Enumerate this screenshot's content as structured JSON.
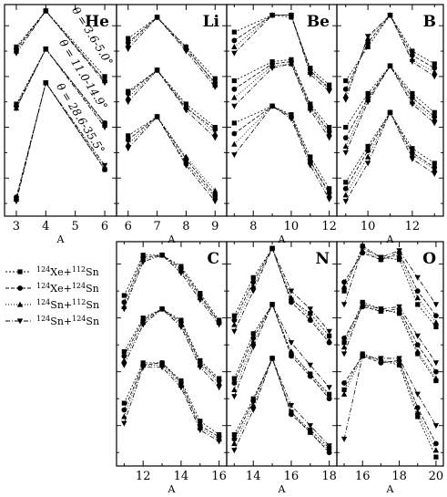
{
  "figure": {
    "xlabel": "A",
    "theta_labels": [
      "θ = 3.6-5.0°",
      "θ = 11.0-14.9°",
      "θ = 28.6-35.5°"
    ]
  },
  "legend": [
    {
      "label": "124Xe+112Sn",
      "marker": "square",
      "dash": "2,2"
    },
    {
      "label": "124Xe+124Sn",
      "marker": "circle",
      "dash": "4,2"
    },
    {
      "label": "124Sn+112Sn",
      "marker": "triangle-up",
      "dash": "1,2"
    },
    {
      "label": "124Sn+124Sn",
      "marker": "triangle-down",
      "dash": "5,2,1,2"
    }
  ],
  "chart_data": [
    {
      "type": "line",
      "element": "He",
      "x": [
        3,
        4,
        6
      ],
      "xticks": [
        3,
        4,
        5,
        6
      ],
      "xlim": [
        2.6,
        6.4
      ],
      "ylim": [
        0,
        1
      ],
      "series": [
        {
          "angle": "3.6-5.0",
          "values": {
            "square": [
              0.2,
              0.03,
              0.34
            ],
            "circle": [
              0.21,
              0.03,
              0.36
            ],
            "triangle-up": [
              0.22,
              0.03,
              0.36
            ],
            "triangle-down": [
              0.23,
              0.03,
              0.37
            ]
          }
        },
        {
          "angle": "11.0-14.9",
          "values": {
            "square": [
              0.47,
              0.21,
              0.56
            ],
            "circle": [
              0.48,
              0.21,
              0.56
            ],
            "triangle-up": [
              0.49,
              0.21,
              0.57
            ],
            "triangle-down": [
              0.49,
              0.21,
              0.58
            ]
          }
        },
        {
          "angle": "28.6-35.5",
          "values": {
            "square": [
              0.92,
              0.37,
              0.78
            ],
            "circle": [
              0.91,
              0.37,
              0.78
            ],
            "triangle-up": [
              0.92,
              0.37,
              0.77
            ],
            "triangle-down": [
              0.93,
              0.37,
              0.76
            ]
          }
        }
      ]
    },
    {
      "type": "line",
      "element": "Li",
      "x": [
        6,
        7,
        8,
        9
      ],
      "xticks": [
        6,
        7,
        8,
        9
      ],
      "xlim": [
        5.6,
        9.4
      ],
      "ylim": [
        0,
        1
      ],
      "series": [
        {
          "angle": "3.6-5.0",
          "values": {
            "square": [
              0.16,
              0.06,
              0.2,
              0.35
            ],
            "circle": [
              0.18,
              0.06,
              0.21,
              0.37
            ],
            "triangle-up": [
              0.19,
              0.06,
              0.2,
              0.38
            ],
            "triangle-down": [
              0.21,
              0.06,
              0.22,
              0.39
            ]
          }
        },
        {
          "angle": "11.0-14.9",
          "values": {
            "square": [
              0.41,
              0.31,
              0.47,
              0.58
            ],
            "circle": [
              0.42,
              0.31,
              0.49,
              0.59
            ],
            "triangle-up": [
              0.44,
              0.31,
              0.48,
              0.61
            ],
            "triangle-down": [
              0.46,
              0.31,
              0.5,
              0.63
            ]
          }
        },
        {
          "angle": "28.6-35.5",
          "values": {
            "square": [
              0.62,
              0.53,
              0.75,
              0.91
            ],
            "circle": [
              0.64,
              0.53,
              0.73,
              0.9
            ],
            "triangle-up": [
              0.66,
              0.53,
              0.72,
              0.88
            ],
            "triangle-down": [
              0.68,
              0.53,
              0.76,
              0.93
            ]
          }
        }
      ]
    },
    {
      "type": "line",
      "element": "Be",
      "x": [
        7,
        9,
        10,
        11,
        12
      ],
      "xticks": [
        8,
        10,
        12
      ],
      "xlim": [
        6.6,
        12.4
      ],
      "ylim": [
        0,
        1
      ],
      "series": [
        {
          "angle": "3.6-5.0",
          "values": {
            "square": [
              0.13,
              0.05,
              0.06,
              0.3,
              0.38
            ],
            "circle": [
              0.17,
              0.05,
              0.05,
              0.31,
              0.4
            ],
            "triangle-up": [
              0.2,
              0.05,
              0.05,
              0.32,
              0.39
            ],
            "triangle-down": [
              0.23,
              0.05,
              0.05,
              0.33,
              0.41
            ]
          }
        },
        {
          "angle": "11.0-14.9",
          "values": {
            "square": [
              0.36,
              0.27,
              0.26,
              0.47,
              0.58
            ],
            "circle": [
              0.4,
              0.28,
              0.27,
              0.48,
              0.6
            ],
            "triangle-up": [
              0.44,
              0.29,
              0.28,
              0.49,
              0.61
            ],
            "triangle-down": [
              0.48,
              0.3,
              0.28,
              0.5,
              0.63
            ]
          }
        },
        {
          "angle": "28.6-35.5",
          "values": {
            "square": [
              0.56,
              0.48,
              0.52,
              0.72,
              0.87
            ],
            "circle": [
              0.61,
              0.48,
              0.53,
              0.74,
              0.89
            ],
            "triangle-up": [
              0.66,
              0.48,
              0.53,
              0.74,
              0.9
            ],
            "triangle-down": [
              0.71,
              0.48,
              0.54,
              0.76,
              0.92
            ]
          }
        }
      ]
    },
    {
      "type": "line",
      "element": "B",
      "x": [
        9,
        10,
        11,
        12,
        13
      ],
      "xticks": [
        10,
        12
      ],
      "xlim": [
        8.6,
        13.4
      ],
      "ylim": [
        0,
        1
      ],
      "series": [
        {
          "angle": "3.6-5.0",
          "values": {
            "square": [
              0.36,
              0.2,
              0.05,
              0.22,
              0.28
            ],
            "circle": [
              0.4,
              0.18,
              0.05,
              0.24,
              0.3
            ],
            "triangle-up": [
              0.43,
              0.16,
              0.05,
              0.26,
              0.32
            ],
            "triangle-down": [
              0.45,
              0.15,
              0.05,
              0.27,
              0.34
            ]
          }
        },
        {
          "angle": "11.0-14.9",
          "values": {
            "square": [
              0.58,
              0.42,
              0.29,
              0.42,
              0.51
            ],
            "circle": [
              0.63,
              0.44,
              0.29,
              0.44,
              0.53
            ],
            "triangle-up": [
              0.67,
              0.45,
              0.29,
              0.46,
              0.54
            ],
            "triangle-down": [
              0.7,
              0.46,
              0.29,
              0.47,
              0.56
            ]
          }
        },
        {
          "angle": "28.6-35.5",
          "values": {
            "square": [
              0.84,
              0.67,
              0.51,
              0.68,
              0.75
            ],
            "circle": [
              0.87,
              0.69,
              0.51,
              0.7,
              0.77
            ],
            "triangle-up": [
              0.9,
              0.72,
              0.51,
              0.71,
              0.78
            ],
            "triangle-down": [
              0.93,
              0.75,
              0.51,
              0.73,
              0.8
            ]
          }
        }
      ]
    },
    {
      "type": "line",
      "element": "C",
      "x": [
        11,
        12,
        13,
        14,
        15,
        16
      ],
      "xticks": [
        12,
        14,
        16
      ],
      "xlim": [
        10.6,
        16.4
      ],
      "ylim": [
        0,
        1
      ],
      "series": [
        {
          "angle": "3.6-5.0",
          "values": {
            "square": [
              0.24,
              0.06,
              0.06,
              0.11,
              0.23,
              0.35
            ],
            "circle": [
              0.27,
              0.07,
              0.06,
              0.12,
              0.24,
              0.36
            ],
            "triangle-up": [
              0.29,
              0.08,
              0.06,
              0.13,
              0.25,
              0.36
            ],
            "triangle-down": [
              0.3,
              0.09,
              0.06,
              0.14,
              0.26,
              0.37
            ]
          }
        },
        {
          "angle": "11.0-14.9",
          "values": {
            "square": [
              0.49,
              0.34,
              0.3,
              0.35,
              0.53,
              0.61
            ],
            "circle": [
              0.51,
              0.35,
              0.3,
              0.36,
              0.54,
              0.62
            ],
            "triangle-up": [
              0.53,
              0.36,
              0.3,
              0.37,
              0.55,
              0.63
            ],
            "triangle-down": [
              0.55,
              0.37,
              0.3,
              0.38,
              0.56,
              0.65
            ]
          }
        },
        {
          "angle": "28.6-35.5",
          "values": {
            "square": [
              0.72,
              0.54,
              0.54,
              0.62,
              0.8,
              0.86
            ],
            "circle": [
              0.75,
              0.55,
              0.54,
              0.63,
              0.82,
              0.87
            ],
            "triangle-up": [
              0.78,
              0.55,
              0.55,
              0.64,
              0.83,
              0.88
            ],
            "triangle-down": [
              0.81,
              0.56,
              0.56,
              0.65,
              0.84,
              0.89
            ]
          }
        }
      ]
    },
    {
      "type": "line",
      "element": "N",
      "x": [
        13,
        14,
        15,
        16,
        17,
        18
      ],
      "xticks": [
        14,
        16,
        18
      ],
      "xlim": [
        12.6,
        18.4
      ],
      "ylim": [
        0,
        1
      ],
      "series": [
        {
          "angle": "3.6-5.0",
          "values": {
            "square": [
              0.33,
              0.16,
              0.03,
              0.26,
              0.32,
              0.42
            ],
            "circle": [
              0.35,
              0.18,
              0.03,
              0.27,
              0.35,
              0.45
            ],
            "triangle-up": [
              0.37,
              0.2,
              0.03,
              0.25,
              0.34,
              0.44
            ],
            "triangle-down": [
              0.4,
              0.22,
              0.03,
              0.22,
              0.3,
              0.4
            ]
          }
        },
        {
          "angle": "11.0-14.9",
          "values": {
            "square": [
              0.61,
              0.41,
              0.28,
              0.5,
              0.59,
              0.68
            ],
            "circle": [
              0.63,
              0.43,
              0.28,
              0.51,
              0.6,
              0.7
            ],
            "triangle-up": [
              0.66,
              0.45,
              0.28,
              0.49,
              0.59,
              0.69
            ],
            "triangle-down": [
              0.69,
              0.47,
              0.28,
              0.45,
              0.55,
              0.65
            ]
          }
        },
        {
          "angle": "28.6-35.5",
          "values": {
            "square": [
              0.86,
              0.7,
              0.52,
              0.76,
              0.84,
              0.92
            ],
            "circle": [
              0.88,
              0.71,
              0.52,
              0.77,
              0.85,
              0.94
            ],
            "triangle-up": [
              0.9,
              0.73,
              0.52,
              0.76,
              0.85,
              0.93
            ],
            "triangle-down": [
              0.93,
              0.75,
              0.52,
              0.73,
              0.82,
              0.91
            ]
          }
        }
      ]
    },
    {
      "type": "line",
      "element": "O",
      "x": [
        15,
        16,
        17,
        18,
        19,
        20
      ],
      "xticks": [
        16,
        18,
        20
      ],
      "xlim": [
        14.6,
        20.4
      ],
      "ylim": [
        0,
        1
      ],
      "series": [
        {
          "angle": "3.6-5.0",
          "values": {
            "square": [
              0.22,
              0.02,
              0.07,
              0.08,
              0.28,
              0.38
            ],
            "circle": [
              0.18,
              0.05,
              0.08,
              0.05,
              0.22,
              0.33
            ],
            "triangle-up": [
              0.2,
              0.04,
              0.08,
              0.06,
              0.25,
              0.36
            ],
            "triangle-down": [
              0.28,
              0.03,
              0.07,
              0.04,
              0.16,
              0.28
            ]
          }
        },
        {
          "angle": "11.0-14.9",
          "values": {
            "square": [
              0.45,
              0.27,
              0.3,
              0.32,
              0.5,
              0.62
            ],
            "circle": [
              0.43,
              0.29,
              0.31,
              0.3,
              0.46,
              0.58
            ],
            "triangle-up": [
              0.47,
              0.28,
              0.31,
              0.31,
              0.49,
              0.61
            ],
            "triangle-down": [
              0.5,
              0.28,
              0.3,
              0.29,
              0.42,
              0.54
            ]
          }
        },
        {
          "angle": "28.6-35.5",
          "values": {
            "square": [
              0.66,
              0.5,
              0.53,
              0.55,
              0.78,
              0.96
            ],
            "circle": [
              0.63,
              0.51,
              0.54,
              0.53,
              0.74,
              0.9
            ],
            "triangle-up": [
              0.68,
              0.51,
              0.53,
              0.54,
              0.76,
              0.93
            ],
            "triangle-down": [
              0.88,
              0.51,
              0.52,
              0.52,
              0.68,
              0.82
            ]
          }
        }
      ]
    }
  ]
}
